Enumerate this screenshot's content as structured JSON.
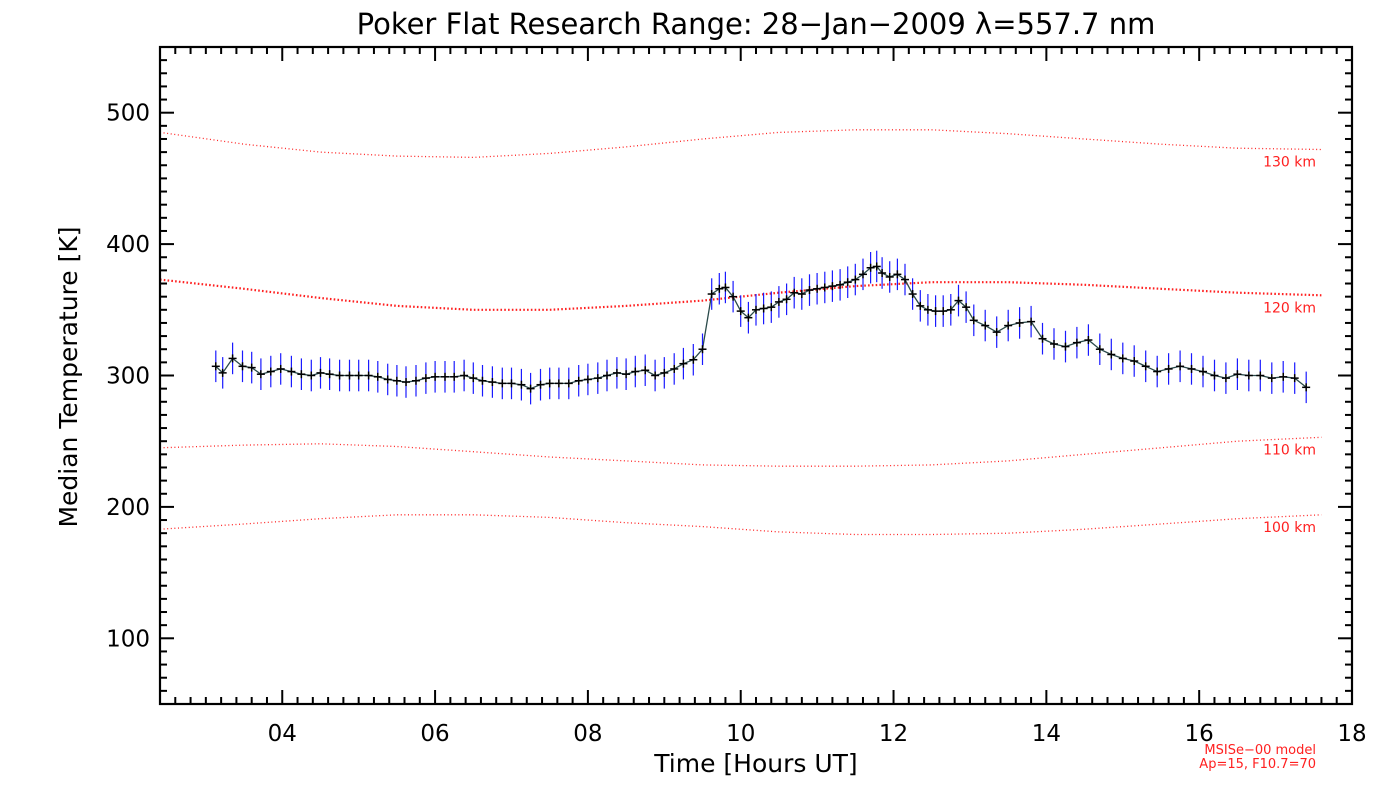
{
  "chart_data": {
    "type": "line",
    "title": "Poker Flat Research Range: 28−Jan−2009 λ=557.7 nm",
    "xlabel": "Time [Hours UT]",
    "ylabel": "Median Temperature [K]",
    "xlim": [
      2.4,
      18.0
    ],
    "ylim": [
      50,
      550
    ],
    "x_ticks": [
      4,
      6,
      8,
      10,
      12,
      14,
      16,
      18
    ],
    "x_tick_labels": [
      "04",
      "06",
      "08",
      "10",
      "12",
      "14",
      "16",
      "18"
    ],
    "y_ticks": [
      100,
      200,
      300,
      400,
      500
    ],
    "y_tick_labels": [
      "100",
      "200",
      "300",
      "400",
      "500"
    ],
    "grid": false,
    "colors": {
      "data_line": "#2a4a4a",
      "error_bar": "#1a1aff",
      "marker": "#000000",
      "model": "#ff2020",
      "axes": "#000000"
    },
    "series": [
      {
        "name": "Median Temperature",
        "error": 12,
        "points": [
          [
            3.13,
            307
          ],
          [
            3.22,
            302
          ],
          [
            3.35,
            313
          ],
          [
            3.48,
            307
          ],
          [
            3.6,
            306
          ],
          [
            3.72,
            301
          ],
          [
            3.85,
            303
          ],
          [
            3.98,
            305
          ],
          [
            4.12,
            303
          ],
          [
            4.25,
            301
          ],
          [
            4.38,
            300
          ],
          [
            4.5,
            302
          ],
          [
            4.62,
            301
          ],
          [
            4.75,
            300
          ],
          [
            4.88,
            300
          ],
          [
            5.0,
            300
          ],
          [
            5.13,
            300
          ],
          [
            5.25,
            299
          ],
          [
            5.38,
            297
          ],
          [
            5.5,
            296
          ],
          [
            5.62,
            295
          ],
          [
            5.75,
            296
          ],
          [
            5.88,
            298
          ],
          [
            6.0,
            299
          ],
          [
            6.13,
            299
          ],
          [
            6.25,
            299
          ],
          [
            6.38,
            300
          ],
          [
            6.5,
            298
          ],
          [
            6.62,
            296
          ],
          [
            6.75,
            295
          ],
          [
            6.88,
            294
          ],
          [
            7.0,
            294
          ],
          [
            7.13,
            293
          ],
          [
            7.25,
            290
          ],
          [
            7.38,
            293
          ],
          [
            7.5,
            294
          ],
          [
            7.62,
            294
          ],
          [
            7.75,
            294
          ],
          [
            7.88,
            296
          ],
          [
            8.0,
            297
          ],
          [
            8.13,
            298
          ],
          [
            8.25,
            300
          ],
          [
            8.38,
            302
          ],
          [
            8.5,
            301
          ],
          [
            8.62,
            303
          ],
          [
            8.75,
            304
          ],
          [
            8.88,
            300
          ],
          [
            9.0,
            302
          ],
          [
            9.13,
            305
          ],
          [
            9.25,
            309
          ],
          [
            9.38,
            312
          ],
          [
            9.5,
            320
          ],
          [
            9.62,
            362
          ],
          [
            9.72,
            366
          ],
          [
            9.8,
            367
          ],
          [
            9.9,
            360
          ],
          [
            10.0,
            349
          ],
          [
            10.1,
            344
          ],
          [
            10.2,
            350
          ],
          [
            10.3,
            351
          ],
          [
            10.4,
            352
          ],
          [
            10.5,
            356
          ],
          [
            10.6,
            358
          ],
          [
            10.7,
            363
          ],
          [
            10.8,
            362
          ],
          [
            10.9,
            365
          ],
          [
            11.0,
            366
          ],
          [
            11.1,
            367
          ],
          [
            11.2,
            368
          ],
          [
            11.3,
            369
          ],
          [
            11.4,
            371
          ],
          [
            11.5,
            373
          ],
          [
            11.6,
            377
          ],
          [
            11.7,
            382
          ],
          [
            11.78,
            383
          ],
          [
            11.85,
            378
          ],
          [
            11.95,
            375
          ],
          [
            12.05,
            377
          ],
          [
            12.15,
            373
          ],
          [
            12.25,
            362
          ],
          [
            12.35,
            353
          ],
          [
            12.45,
            350
          ],
          [
            12.55,
            349
          ],
          [
            12.65,
            349
          ],
          [
            12.75,
            350
          ],
          [
            12.85,
            357
          ],
          [
            12.95,
            352
          ],
          [
            13.05,
            342
          ],
          [
            13.2,
            338
          ],
          [
            13.35,
            333
          ],
          [
            13.5,
            338
          ],
          [
            13.65,
            340
          ],
          [
            13.8,
            341
          ],
          [
            13.95,
            328
          ],
          [
            14.1,
            324
          ],
          [
            14.25,
            322
          ],
          [
            14.4,
            325
          ],
          [
            14.55,
            327
          ],
          [
            14.7,
            320
          ],
          [
            14.85,
            316
          ],
          [
            15.0,
            313
          ],
          [
            15.15,
            311
          ],
          [
            15.3,
            307
          ],
          [
            15.45,
            303
          ],
          [
            15.6,
            305
          ],
          [
            15.75,
            307
          ],
          [
            15.9,
            305
          ],
          [
            16.05,
            303
          ],
          [
            16.2,
            300
          ],
          [
            16.35,
            298
          ],
          [
            16.5,
            301
          ],
          [
            16.65,
            300
          ],
          [
            16.8,
            300
          ],
          [
            16.95,
            298
          ],
          [
            17.1,
            299
          ],
          [
            17.25,
            298
          ],
          [
            17.4,
            291
          ]
        ]
      }
    ],
    "model_curves": [
      {
        "name": "MSISe-00 130 km",
        "label": "130 km",
        "style": "dotted-sparse",
        "points": [
          [
            2.4,
            485
          ],
          [
            3.5,
            476
          ],
          [
            4.5,
            470
          ],
          [
            5.5,
            467
          ],
          [
            6.5,
            466
          ],
          [
            7.5,
            469
          ],
          [
            8.5,
            474
          ],
          [
            9.5,
            480
          ],
          [
            10.5,
            485
          ],
          [
            11.5,
            487
          ],
          [
            12.5,
            487
          ],
          [
            13.5,
            484
          ],
          [
            14.5,
            480
          ],
          [
            15.5,
            476
          ],
          [
            16.5,
            473
          ],
          [
            17.6,
            472
          ]
        ]
      },
      {
        "name": "MSISe-00 120 km",
        "label": "120 km",
        "style": "dotted-dense",
        "points": [
          [
            2.4,
            373
          ],
          [
            3.5,
            366
          ],
          [
            4.5,
            359
          ],
          [
            5.5,
            353
          ],
          [
            6.5,
            350
          ],
          [
            7.5,
            350
          ],
          [
            8.5,
            353
          ],
          [
            9.5,
            357
          ],
          [
            10.5,
            363
          ],
          [
            11.5,
            368
          ],
          [
            12.5,
            371
          ],
          [
            13.5,
            371
          ],
          [
            14.5,
            369
          ],
          [
            15.5,
            366
          ],
          [
            16.5,
            363
          ],
          [
            17.6,
            361
          ]
        ]
      },
      {
        "name": "MSISe-00 110 km",
        "label": "110 km",
        "style": "dotted-sparse",
        "points": [
          [
            2.4,
            245
          ],
          [
            3.5,
            247
          ],
          [
            4.5,
            248
          ],
          [
            5.5,
            246
          ],
          [
            6.5,
            242
          ],
          [
            7.5,
            238
          ],
          [
            8.5,
            235
          ],
          [
            9.5,
            232
          ],
          [
            10.5,
            231
          ],
          [
            11.5,
            231
          ],
          [
            12.5,
            232
          ],
          [
            13.5,
            235
          ],
          [
            14.5,
            240
          ],
          [
            15.5,
            245
          ],
          [
            16.5,
            250
          ],
          [
            17.6,
            253
          ]
        ]
      },
      {
        "name": "MSISe-00 100 km",
        "label": "100 km",
        "style": "dotted-sparse",
        "points": [
          [
            2.4,
            183
          ],
          [
            3.5,
            187
          ],
          [
            4.5,
            191
          ],
          [
            5.5,
            194
          ],
          [
            6.5,
            194
          ],
          [
            7.5,
            192
          ],
          [
            8.5,
            188
          ],
          [
            9.5,
            185
          ],
          [
            10.5,
            181
          ],
          [
            11.5,
            179
          ],
          [
            12.5,
            179
          ],
          [
            13.5,
            180
          ],
          [
            14.5,
            183
          ],
          [
            15.5,
            187
          ],
          [
            16.5,
            191
          ],
          [
            17.6,
            194
          ]
        ]
      }
    ],
    "model_note": [
      "MSISe−00 model",
      "Ap=15, F10.7=70"
    ]
  }
}
